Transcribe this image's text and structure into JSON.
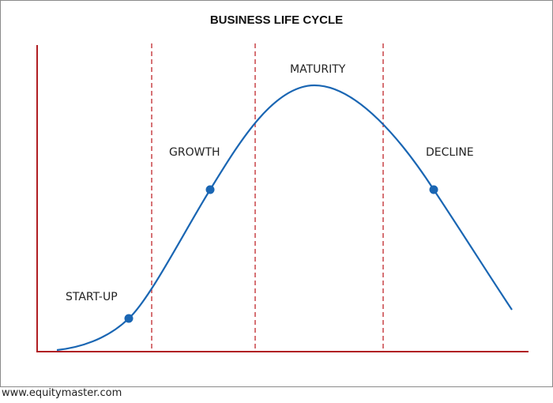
{
  "title": "BUSINESS LIFE CYCLE",
  "phases": [
    {
      "id": "startup",
      "label": "START-UP"
    },
    {
      "id": "growth",
      "label": "GROWTH"
    },
    {
      "id": "maturity",
      "label": "MATURITY"
    },
    {
      "id": "decline",
      "label": "DECLINE"
    }
  ],
  "watermark": "www.equitymaster.com",
  "colors": {
    "axis": "#b01e23",
    "divider": "#c0262b",
    "curve": "#1a66b3",
    "marker": "#1a66b3",
    "title": "#111111",
    "label": "#222222"
  }
}
